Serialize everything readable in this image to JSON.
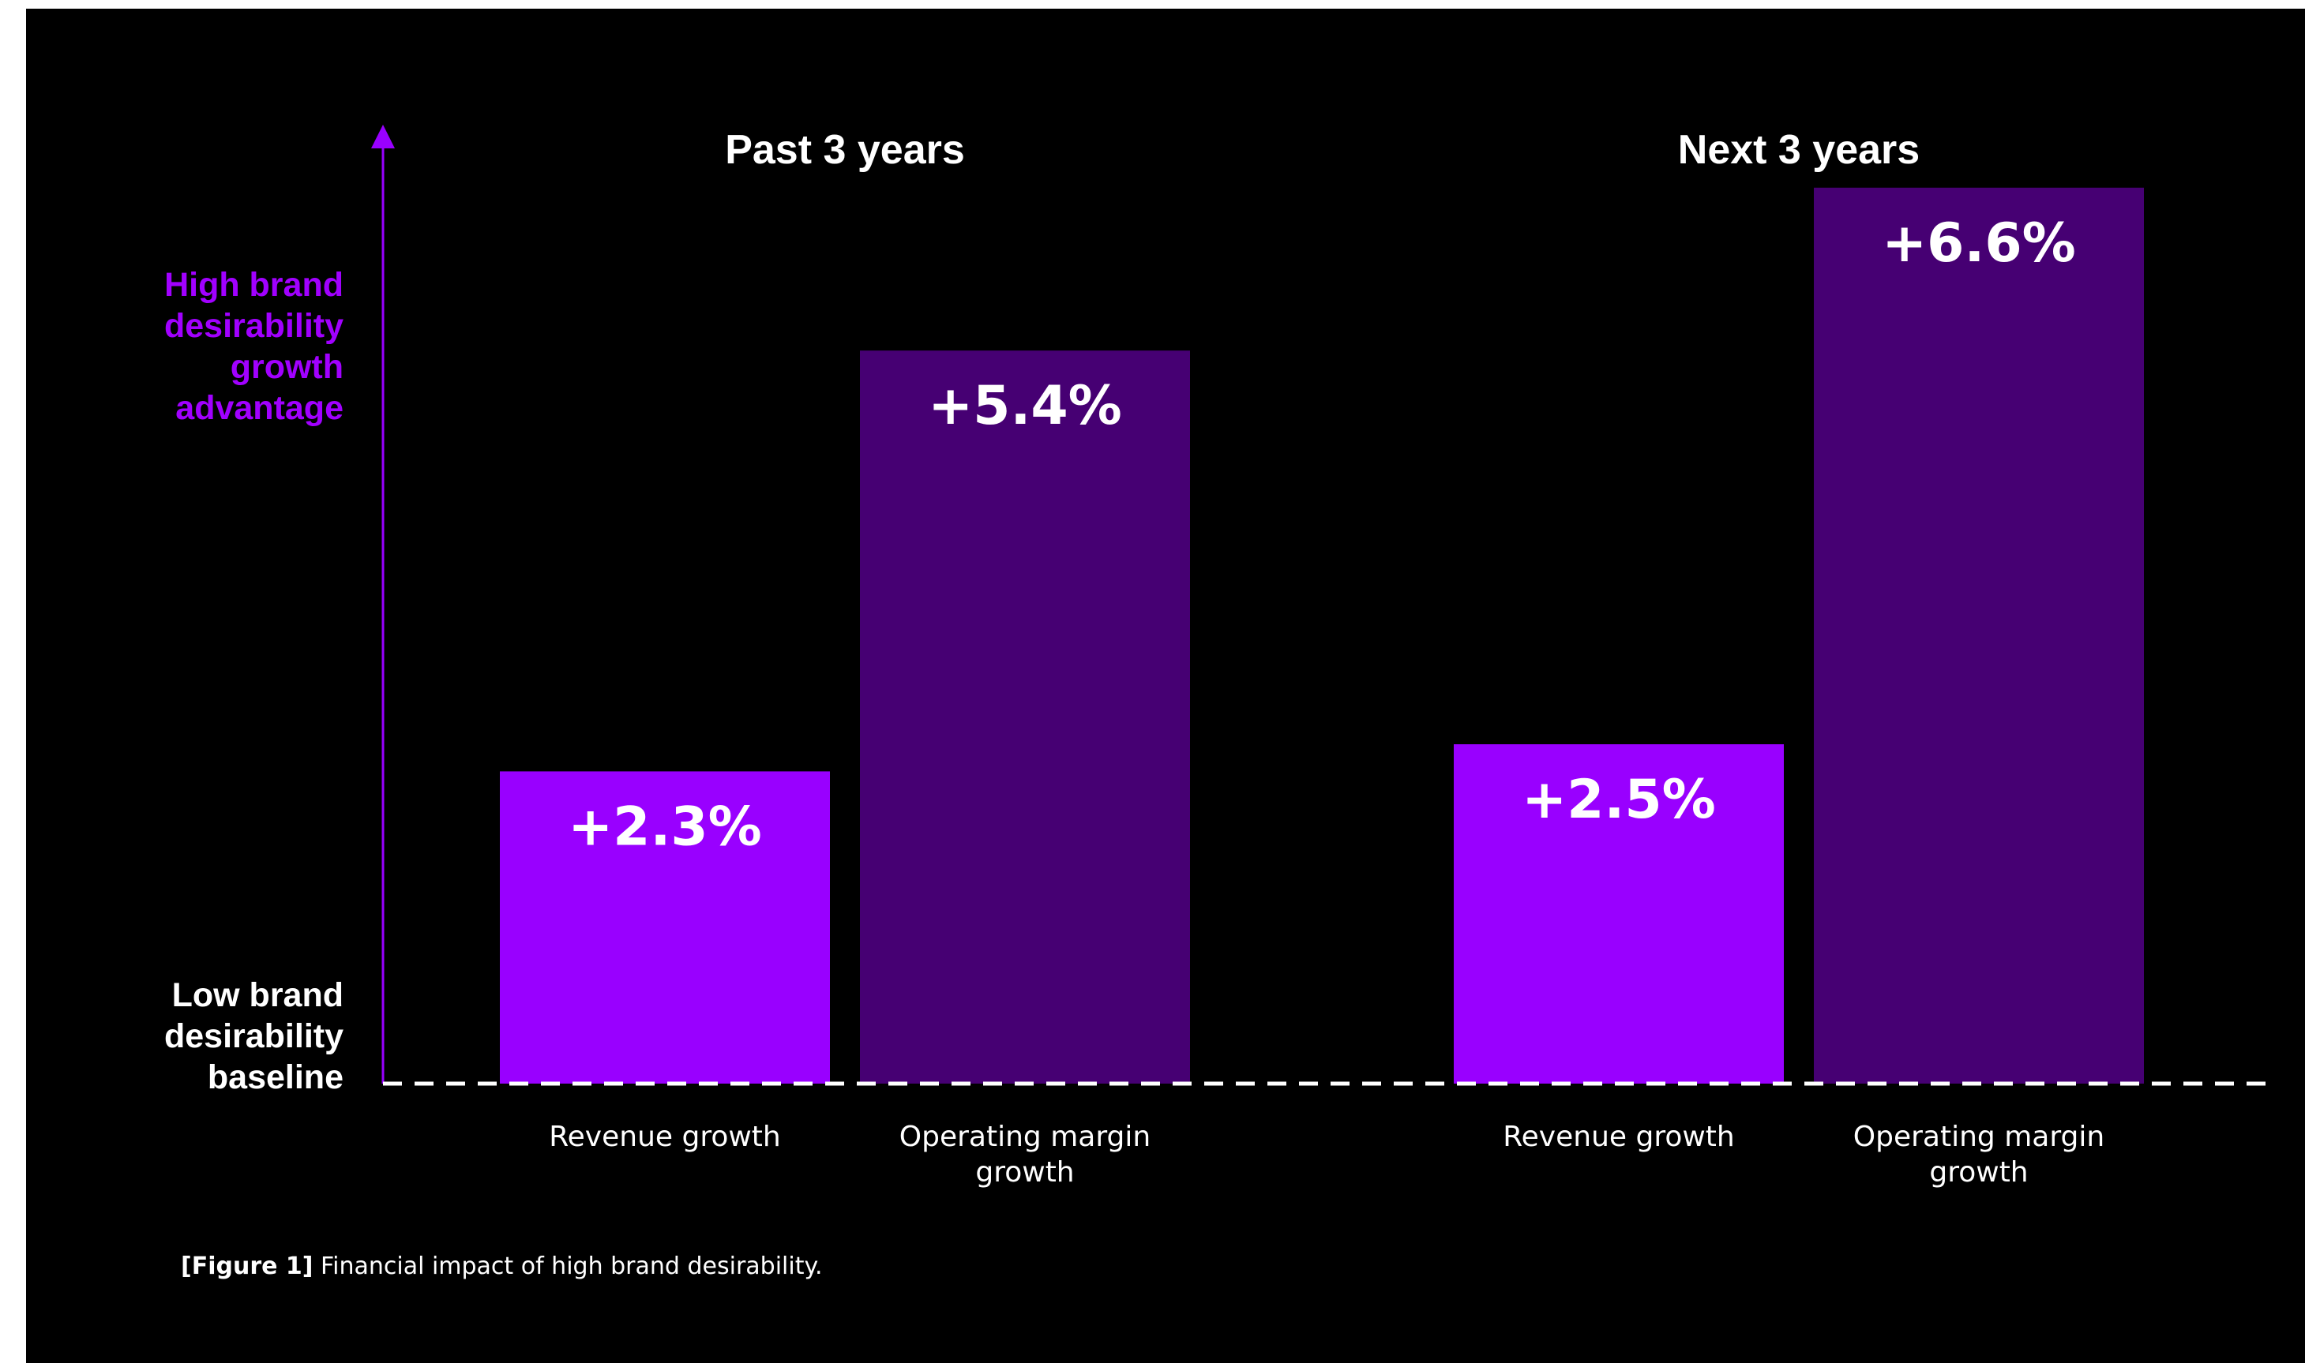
{
  "chart_data": {
    "type": "bar",
    "groups": [
      "Past 3 years",
      "Next 3 years"
    ],
    "categories": [
      "Revenue growth",
      "Operating margin growth"
    ],
    "series": [
      {
        "group": "Past 3 years",
        "values": [
          2.3,
          5.4
        ],
        "labels": [
          "+2.3%",
          "+5.4%"
        ]
      },
      {
        "group": "Next 3 years",
        "values": [
          2.5,
          6.6
        ],
        "labels": [
          "+2.5%",
          "+6.6%"
        ]
      }
    ],
    "y_axis": {
      "high_label": [
        "High brand",
        "desirability",
        "growth",
        "advantage"
      ],
      "low_label": [
        "Low brand",
        "desirability",
        "baseline"
      ]
    },
    "category_label_lines": [
      [
        "Revenue growth"
      ],
      [
        "Operating margin",
        "growth"
      ]
    ],
    "ylim": [
      0,
      7.5
    ],
    "grid": false,
    "legend": "none",
    "colors": {
      "revenue": "#9900ff",
      "operating_margin": "#460073",
      "axis": "#9900ff",
      "high_label": "#a100ff",
      "text": "#ffffff",
      "background": "#000000",
      "baseline": "#ffffff"
    }
  },
  "caption": {
    "figure": "[Figure 1]",
    "text": "Financial impact of high brand desirability."
  }
}
